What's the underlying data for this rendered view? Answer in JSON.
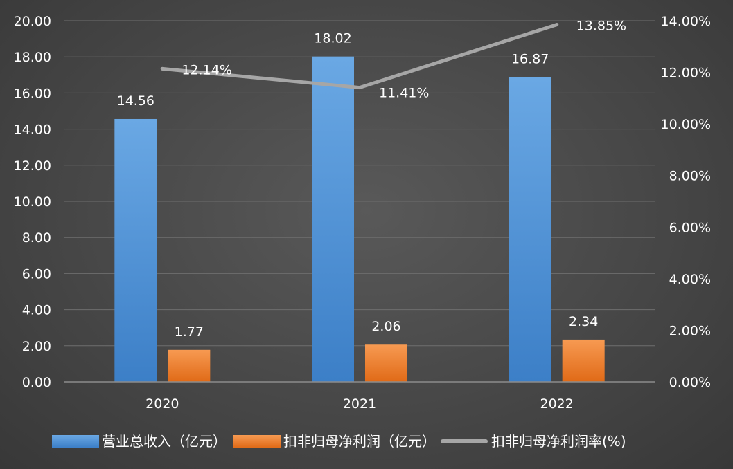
{
  "chart_data": {
    "type": "bar",
    "categories": [
      "2020",
      "2021",
      "2022"
    ],
    "series": [
      {
        "name": "营业总收入（亿元）",
        "kind": "bar",
        "axis": "left",
        "values": [
          14.56,
          18.02,
          16.87
        ],
        "labels": [
          "14.56",
          "18.02",
          "16.87"
        ],
        "color": "#4f97dd"
      },
      {
        "name": "扣非归母净利润（亿元）",
        "kind": "bar",
        "axis": "left",
        "values": [
          1.77,
          2.06,
          2.34
        ],
        "labels": [
          "1.77",
          "2.06",
          "2.34"
        ],
        "color": "#f07d2c"
      },
      {
        "name": "扣非归母净利润率(%)",
        "kind": "line",
        "axis": "right",
        "values": [
          12.14,
          11.41,
          13.85
        ],
        "labels": [
          "12.14%",
          "11.41%",
          "13.85%"
        ],
        "color": "#a6a6a6"
      }
    ],
    "y_left": {
      "min": 0,
      "max": 20,
      "ticks": [
        "0.00",
        "2.00",
        "4.00",
        "6.00",
        "8.00",
        "10.00",
        "12.00",
        "14.00",
        "16.00",
        "18.00",
        "20.00"
      ]
    },
    "y_right": {
      "min": 0,
      "max": 14,
      "ticks": [
        "0.00%",
        "2.00%",
        "4.00%",
        "6.00%",
        "8.00%",
        "10.00%",
        "12.00%",
        "14.00%"
      ]
    },
    "grid": true,
    "legend_position": "bottom",
    "colors": {
      "background": "#474747",
      "grid": "#6e6e6e",
      "text": "#ffffff"
    }
  }
}
